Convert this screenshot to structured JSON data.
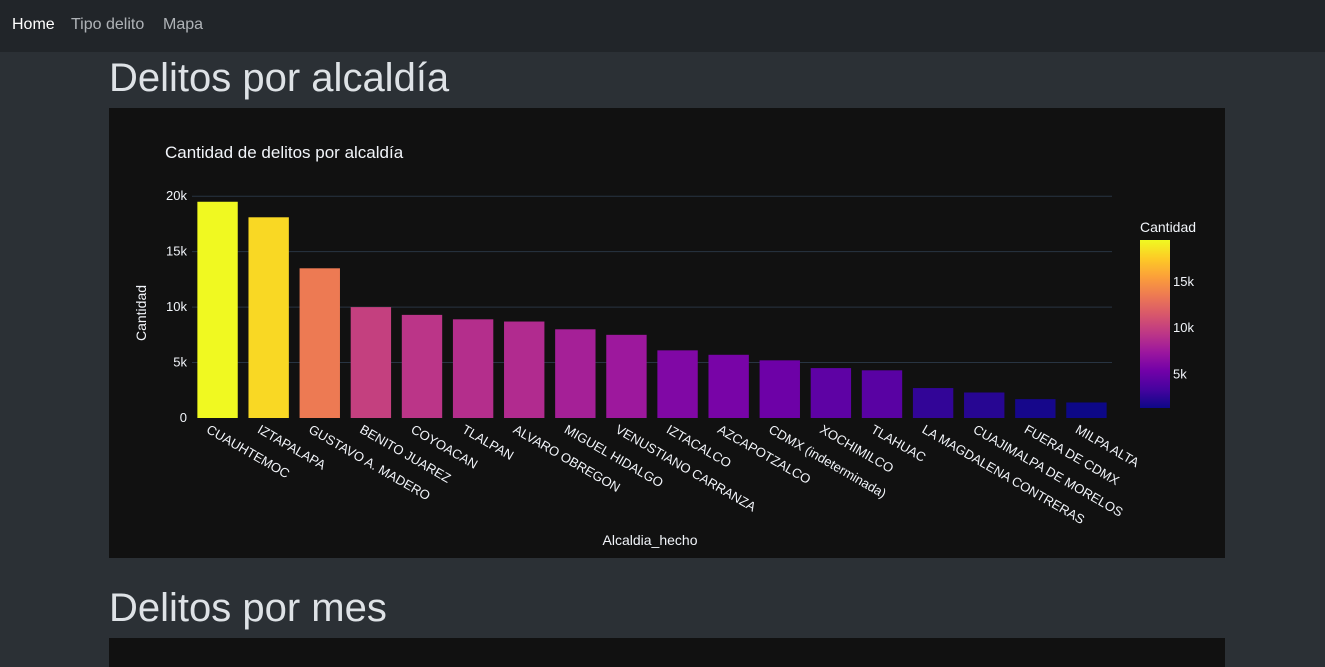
{
  "nav": {
    "items": [
      {
        "label": "Home",
        "active": true
      },
      {
        "label": "Tipo delito",
        "active": false
      },
      {
        "label": "Mapa",
        "active": false
      }
    ]
  },
  "sections": [
    {
      "title": "Delitos por alcaldía"
    },
    {
      "title": "Delitos por mes"
    }
  ],
  "colors": {
    "page_bg": "#2b3035",
    "navbar_bg": "#212529",
    "plot_bg": "#111111",
    "grid": "#283442",
    "text": "#f2f5fa"
  },
  "chart_data": {
    "type": "bar",
    "title": "Cantidad de delitos por alcaldía",
    "xlabel": "Alcaldia_hecho",
    "ylabel": "Cantidad",
    "ylim": [
      0,
      20200
    ],
    "yticks": [
      0,
      5000,
      10000,
      15000,
      20000
    ],
    "ytick_labels": [
      "0",
      "5k",
      "10k",
      "15k",
      "20k"
    ],
    "grid": true,
    "colorscale": "plasma",
    "colorbar": {
      "title": "Cantidad",
      "range": [
        1400,
        19500
      ],
      "ticks": [
        5000,
        10000,
        15000
      ],
      "tick_labels": [
        "5k",
        "10k",
        "15k"
      ],
      "position": "right"
    },
    "categories": [
      "CUAUHTEMOC",
      "IZTAPALAPA",
      "GUSTAVO A. MADERO",
      "BENITO JUAREZ",
      "COYOACAN",
      "TLALPAN",
      "ALVARO OBREGON",
      "MIGUEL HIDALGO",
      "VENUSTIANO CARRANZA",
      "IZTACALCO",
      "AZCAPOTZALCO",
      "CDMX (indeterminada)",
      "XOCHIMILCO",
      "TLAHUAC",
      "LA MAGDALENA CONTRERAS",
      "CUAJIMALPA DE MORELOS",
      "FUERA DE CDMX",
      "MILPA ALTA"
    ],
    "values": [
      19500,
      18100,
      13500,
      10000,
      9300,
      8900,
      8700,
      8000,
      7500,
      6100,
      5700,
      5200,
      4500,
      4300,
      2700,
      2300,
      1700,
      1400
    ]
  }
}
